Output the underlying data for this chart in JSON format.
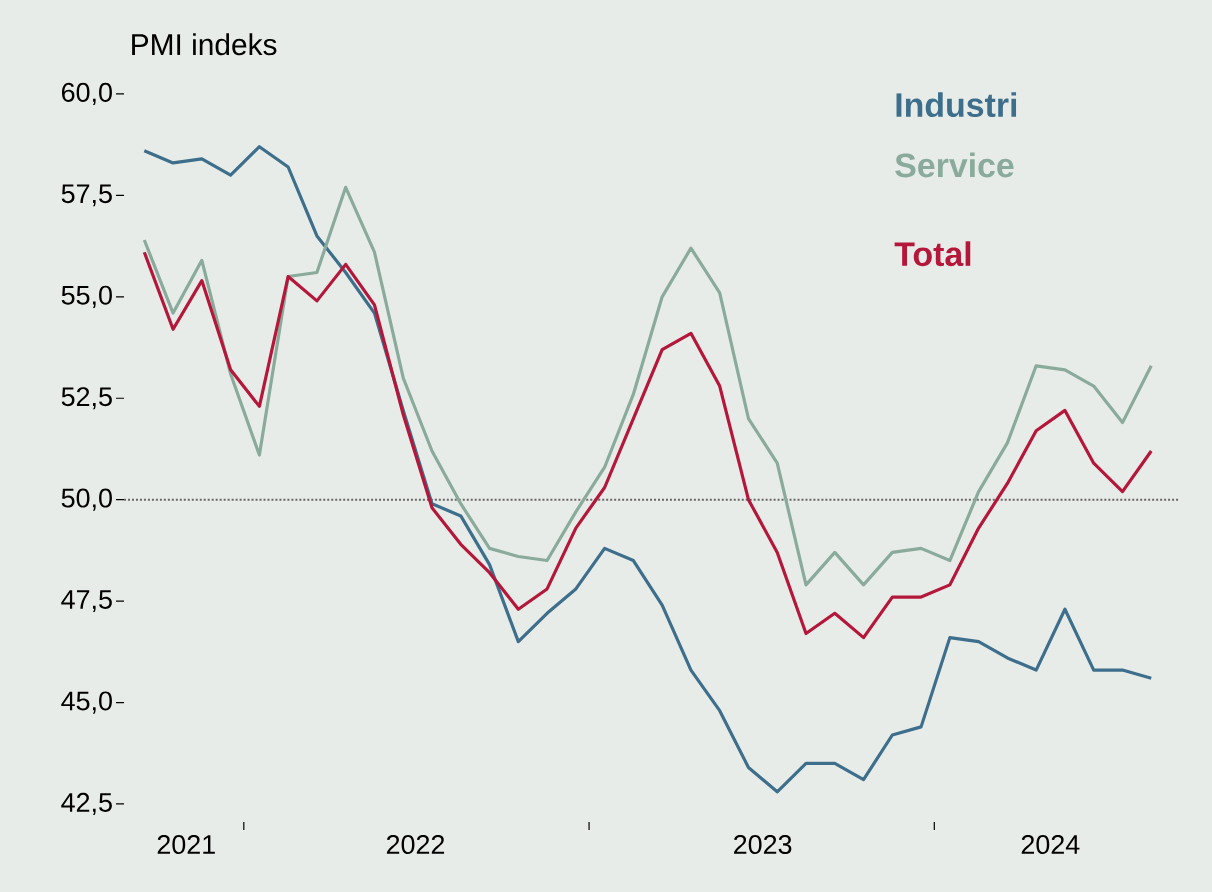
{
  "chart_data": {
    "type": "line",
    "ylabel": "PMI indeks",
    "x": [
      "2021-09",
      "2021-10",
      "2021-11",
      "2021-12",
      "2022-01",
      "2022-02",
      "2022-03",
      "2022-04",
      "2022-05",
      "2022-06",
      "2022-07",
      "2022-08",
      "2022-09",
      "2022-10",
      "2022-11",
      "2022-12",
      "2023-01",
      "2023-02",
      "2023-03",
      "2023-04",
      "2023-05",
      "2023-06",
      "2023-07",
      "2023-08",
      "2023-09",
      "2023-10",
      "2023-11",
      "2023-12",
      "2024-01",
      "2024-02",
      "2024-03",
      "2024-04",
      "2024-05",
      "2024-06",
      "2024-07",
      "2024-08"
    ],
    "series": [
      {
        "name": "Industri",
        "color": "#3d6e8c",
        "values": [
          58.6,
          58.3,
          58.4,
          58.0,
          58.7,
          58.2,
          56.5,
          55.6,
          54.6,
          52.2,
          49.9,
          49.6,
          48.4,
          46.5,
          47.2,
          47.8,
          48.8,
          48.5,
          47.4,
          45.8,
          44.8,
          43.4,
          42.8,
          43.5,
          43.5,
          43.1,
          44.2,
          44.4,
          46.6,
          46.5,
          46.1,
          45.8,
          47.3,
          45.8,
          45.8,
          45.6
        ]
      },
      {
        "name": "Service",
        "color": "#8aab9c",
        "values": [
          56.4,
          54.6,
          55.9,
          53.1,
          51.1,
          55.5,
          55.6,
          57.7,
          56.1,
          53.0,
          51.2,
          49.9,
          48.8,
          48.6,
          48.5,
          49.7,
          50.8,
          52.6,
          55.0,
          56.2,
          55.1,
          52.0,
          50.9,
          47.9,
          48.7,
          47.9,
          48.7,
          48.8,
          48.5,
          50.2,
          51.4,
          53.3,
          53.2,
          52.8,
          51.9,
          53.3
        ]
      },
      {
        "name": "Total",
        "color": "#b5173a",
        "values": [
          56.1,
          54.2,
          55.4,
          53.2,
          52.3,
          55.5,
          54.9,
          55.8,
          54.8,
          52.1,
          49.8,
          48.9,
          48.2,
          47.3,
          47.8,
          49.3,
          50.3,
          52.0,
          53.7,
          54.1,
          52.8,
          50.0,
          48.7,
          46.7,
          47.2,
          46.6,
          47.6,
          47.6,
          47.9,
          49.3,
          50.4,
          51.7,
          52.2,
          50.9,
          50.2,
          51.2
        ]
      }
    ],
    "xlim": [
      "2021-08-10",
      "2024-09-01"
    ],
    "xticks": [
      {
        "value": "2021-10-15",
        "label": "2021"
      },
      {
        "value": "2021-12-15",
        "label": null
      },
      {
        "value": "2022-06-14",
        "label": "2022"
      },
      {
        "value": "2022-12-15",
        "label": null
      },
      {
        "value": "2023-06-16",
        "label": "2023"
      },
      {
        "value": "2023-12-15",
        "label": null
      },
      {
        "value": "2024-04-16",
        "label": "2024"
      }
    ],
    "ylim": [
      42.5,
      60
    ],
    "yticks": [
      {
        "value": 42.5,
        "label": "42,5"
      },
      {
        "value": 45,
        "label": "45,0"
      },
      {
        "value": 47.5,
        "label": "47,5"
      },
      {
        "value": 50,
        "label": "50,0"
      },
      {
        "value": 52.5,
        "label": "52,5"
      },
      {
        "value": 55,
        "label": "55,0"
      },
      {
        "value": 57.5,
        "label": "57,5"
      },
      {
        "value": 60,
        "label": "60,0"
      }
    ],
    "ref_lines": [
      {
        "axis": "y",
        "value": 50,
        "color": "#666666",
        "line_style": "dotted"
      }
    ],
    "grid": false,
    "legend": "top right",
    "marker": "none",
    "line_style": "solid"
  }
}
